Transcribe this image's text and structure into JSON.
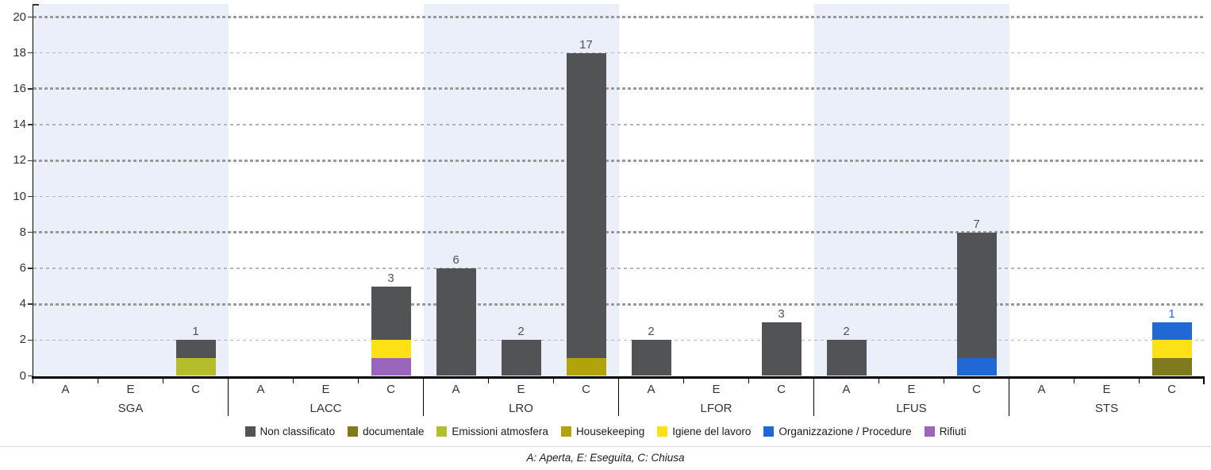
{
  "chart_data": {
    "type": "bar",
    "variant": "grouped-stacked-vertical",
    "title": "",
    "groups": [
      "SGA",
      "LACC",
      "LRO",
      "LFOR",
      "LFUS",
      "STS"
    ],
    "states": [
      "A",
      "E",
      "C"
    ],
    "yticks": [
      "0",
      "2",
      "4",
      "6",
      "8",
      "10",
      "12",
      "14",
      "16",
      "18",
      "20"
    ],
    "ylim": [
      0,
      20
    ],
    "grid": "dashed-horizontal",
    "legend_position": "bottom",
    "band_color": "#eaeffa",
    "axis_color": "#000000",
    "legend": [
      {
        "name": "Non classificato",
        "color": "#525355"
      },
      {
        "name": "documentale",
        "color": "#7f7a1d"
      },
      {
        "name": "Emissioni atmosfera",
        "color": "#b6bd2c"
      },
      {
        "name": "Housekeeping",
        "color": "#b2a30b"
      },
      {
        "name": "Igiene del lavoro",
        "color": "#fbe116"
      },
      {
        "name": "Organizzazione / Procedure",
        "color": "#2268d4"
      },
      {
        "name": "Rifiuti",
        "color": "#9966bb"
      }
    ],
    "bars": [
      {
        "group": "SGA",
        "state": "C",
        "segments": [
          {
            "category": "Emissioni atmosfera",
            "value": 1
          },
          {
            "category": "Non classificato",
            "value": 1
          }
        ]
      },
      {
        "group": "LACC",
        "state": "C",
        "segments": [
          {
            "category": "Rifiuti",
            "value": 1
          },
          {
            "category": "Igiene del lavoro",
            "value": 1
          },
          {
            "category": "Non classificato",
            "value": 3
          }
        ]
      },
      {
        "group": "LRO",
        "state": "A",
        "segments": [
          {
            "category": "Non classificato",
            "value": 6
          }
        ]
      },
      {
        "group": "LRO",
        "state": "E",
        "segments": [
          {
            "category": "Non classificato",
            "value": 2
          }
        ]
      },
      {
        "group": "LRO",
        "state": "C",
        "segments": [
          {
            "category": "Housekeeping",
            "value": 1
          },
          {
            "category": "Non classificato",
            "value": 17
          }
        ]
      },
      {
        "group": "LFOR",
        "state": "A",
        "segments": [
          {
            "category": "Non classificato",
            "value": 2
          }
        ]
      },
      {
        "group": "LFOR",
        "state": "C",
        "segments": [
          {
            "category": "Non classificato",
            "value": 3
          }
        ]
      },
      {
        "group": "LFUS",
        "state": "A",
        "segments": [
          {
            "category": "Non classificato",
            "value": 2
          }
        ]
      },
      {
        "group": "LFUS",
        "state": "C",
        "segments": [
          {
            "category": "Organizzazione / Procedure",
            "value": 1
          },
          {
            "category": "Non classificato",
            "value": 7
          }
        ]
      },
      {
        "group": "STS",
        "state": "C",
        "segments": [
          {
            "category": "documentale",
            "value": 1
          },
          {
            "category": "Igiene del lavoro",
            "value": 1
          },
          {
            "category": "Organizzazione / Procedure",
            "value": 1
          }
        ]
      }
    ],
    "footnote": "A: Aperta, E: Eseguita, C: Chiusa"
  }
}
